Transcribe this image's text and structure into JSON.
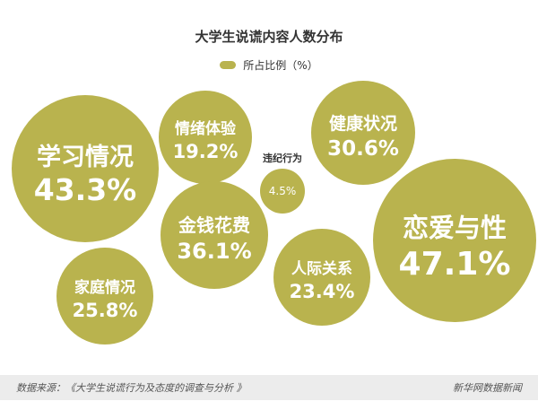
{
  "colors": {
    "bubble": "#b9b34e",
    "text": "#ffffff",
    "dark_text": "#333333"
  },
  "legend": {
    "label": "所占比例（%）"
  },
  "footer": {
    "source": "数据来源：《大学生说谎行为及态度的调查与分析 》",
    "credit": "新华网数据新闻"
  },
  "chart_data": {
    "type": "bubble",
    "title": "大学生说谎内容人数分布",
    "unit": "%",
    "series": [
      {
        "label": "学习情况",
        "value": 43.3,
        "value_text": "43.3%"
      },
      {
        "label": "情绪体验",
        "value": 19.2,
        "value_text": "19.2%"
      },
      {
        "label": "违纪行为",
        "value": 4.5,
        "value_text": "4.5%"
      },
      {
        "label": "健康状况",
        "value": 30.6,
        "value_text": "30.6%"
      },
      {
        "label": "金钱花费",
        "value": 36.1,
        "value_text": "36.1%"
      },
      {
        "label": "恋爱与性",
        "value": 47.1,
        "value_text": "47.1%"
      },
      {
        "label": "家庭情况",
        "value": 25.8,
        "value_text": "25.8%"
      },
      {
        "label": "人际关系",
        "value": 23.4,
        "value_text": "23.4%"
      }
    ]
  }
}
